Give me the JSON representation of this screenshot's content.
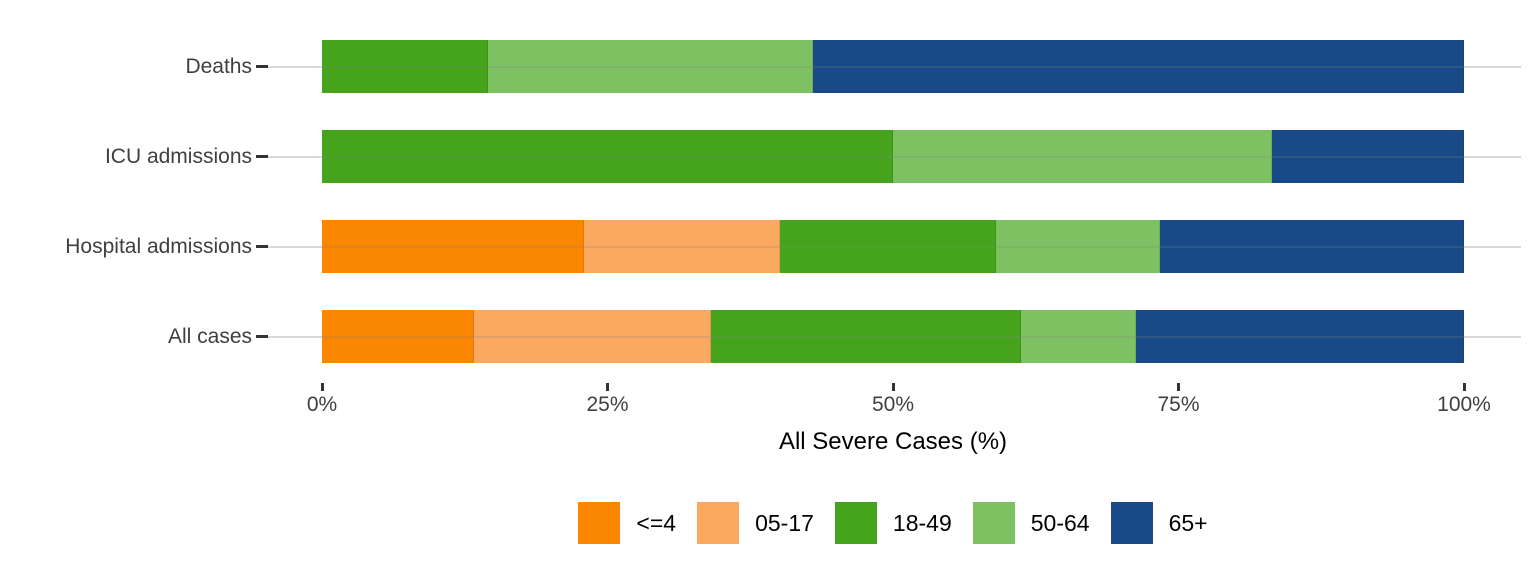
{
  "chart_data": {
    "type": "bar",
    "orientation": "horizontal",
    "stacked": true,
    "stack_unit": "percent",
    "title": "",
    "xlabel": "All Severe Cases (%)",
    "ylabel": "",
    "categories": [
      "Deaths",
      "ICU admissions",
      "Hospital admissions",
      "All cases"
    ],
    "x_ticks": [
      "0%",
      "25%",
      "50%",
      "75%",
      "100%"
    ],
    "x_tick_values": [
      0,
      25,
      50,
      75,
      100
    ],
    "x_range": [
      0,
      100
    ],
    "grid": "horizontal-category-lines-only",
    "legend_position": "bottom",
    "series": [
      {
        "name": "<=4",
        "color": "#fa8602",
        "values": [
          0,
          0,
          22.9,
          13.3
        ]
      },
      {
        "name": "05-17",
        "color": "#fca860",
        "values": [
          0,
          0,
          17.2,
          20.8
        ]
      },
      {
        "name": "18-49",
        "color": "#45a41c",
        "values": [
          14.5,
          50.0,
          18.9,
          27.1
        ]
      },
      {
        "name": "50-64",
        "color": "#7ec162",
        "values": [
          28.5,
          33.2,
          14.4,
          10.1
        ]
      },
      {
        "name": "65+",
        "color": "#194a87",
        "values": [
          57.0,
          16.8,
          26.6,
          28.7
        ]
      }
    ]
  },
  "colors": {
    "gridline": "#d9d9d9",
    "axis_text": "#404040",
    "category_text": "#3f3f3f",
    "tick_mark": "#333333"
  }
}
